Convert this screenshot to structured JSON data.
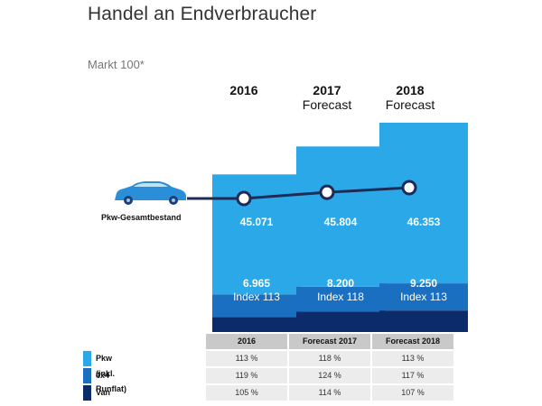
{
  "header": {
    "title": "Handel an Endverbraucher",
    "subtitle": "Markt 100*"
  },
  "columns": [
    {
      "year": "2016",
      "sub": ""
    },
    {
      "year": "2017",
      "sub": "Forecast"
    },
    {
      "year": "2018",
      "sub": "Forecast"
    }
  ],
  "car_label": "Pkw-Gesamtbestand",
  "colors": {
    "pkw": "#2aa8e8",
    "x4": "#1a6fc0",
    "van": "#0b2b6b",
    "line": "#1f2a55"
  },
  "chart_data": {
    "type": "bar",
    "title": "Handel an Endverbraucher",
    "subtitle": "Markt 100*",
    "categories": [
      "2016",
      "2017",
      "2018"
    ],
    "series": [
      {
        "name": "Pkw (inkl. Runflat)",
        "values": [
          5300,
          6200,
          7100
        ]
      },
      {
        "name": "4x4",
        "values": [
          1000,
          1100,
          1200
        ]
      },
      {
        "name": "Van",
        "values": [
          665,
          900,
          950
        ]
      }
    ],
    "totals": [
      "6.965",
      "8.200",
      "9.250"
    ],
    "total_values": [
      6965,
      8200,
      9250
    ],
    "index_labels": [
      "Index 113",
      "Index 118",
      "Index 113"
    ],
    "line_series": {
      "name": "Pkw-Gesamtbestand",
      "values": [
        45071,
        45804,
        46353
      ],
      "labels": [
        "45.071",
        "45.804",
        "46.353"
      ]
    }
  },
  "table": {
    "headers": [
      "2016",
      "Forecast 2017",
      "Forecast 2018"
    ],
    "rows": [
      {
        "label": "Pkw (inkl. Runflat)",
        "color": "#2aa8e8",
        "values": [
          "113 %",
          "118 %",
          "113 %"
        ]
      },
      {
        "label": "4x4",
        "color": "#1a6fc0",
        "values": [
          "119 %",
          "124 %",
          "117 %"
        ]
      },
      {
        "label": "Van",
        "color": "#0b2b6b",
        "values": [
          "105 %",
          "114 %",
          "107 %"
        ]
      }
    ]
  }
}
